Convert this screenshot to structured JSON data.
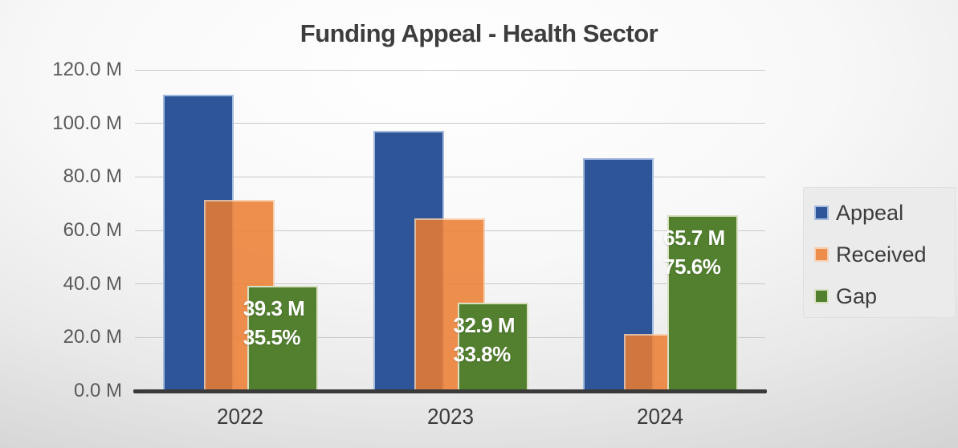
{
  "chart_data": {
    "type": "bar",
    "title": "Funding Appeal - Health Sector",
    "categories": [
      "2022",
      "2023",
      "2024"
    ],
    "series": [
      {
        "name": "Appeal",
        "color": "#2E5597",
        "border_color": "#A3BADF",
        "values": [
          110.7,
          97.3,
          86.9
        ]
      },
      {
        "name": "Received",
        "color": "#ED7D31",
        "border_color": "#F8CBA8",
        "opacity": 0.85,
        "values": [
          71.4,
          64.4,
          21.2
        ]
      },
      {
        "name": "Gap",
        "color": "#53802F",
        "border_color": "#D8E0C2",
        "values": [
          39.3,
          32.9,
          65.7
        ]
      }
    ],
    "bar_labels": [
      {
        "series": "Gap",
        "category": "2022",
        "line1": "39.3 M",
        "line2": "35.5%"
      },
      {
        "series": "Gap",
        "category": "2023",
        "line1": "32.9 M",
        "line2": "33.8%"
      },
      {
        "series": "Gap",
        "category": "2024",
        "line1": "65.7 M",
        "line2": "75.6%"
      }
    ],
    "y_axis": {
      "min": 0,
      "max": 120,
      "step": 20,
      "unit": "M",
      "tick_labels": [
        "120.0 M",
        "100.0 M",
        "80.0 M",
        "60.0 M",
        "40.0 M",
        "20.0 M",
        "0.0 M"
      ]
    },
    "x_axis": {
      "tick_labels": [
        "2022",
        "2023",
        "2024"
      ]
    },
    "legend": {
      "position": "right",
      "entries": [
        "Appeal",
        "Received",
        "Gap"
      ]
    },
    "grid": true
  }
}
